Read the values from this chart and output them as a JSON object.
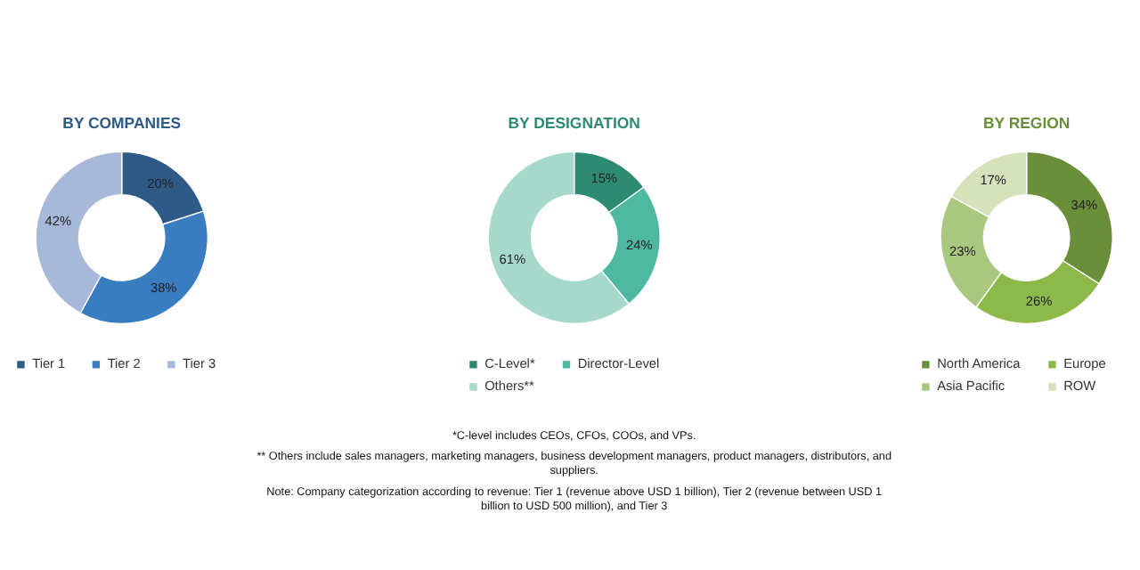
{
  "chart_data": [
    {
      "type": "donut",
      "title": "BY COMPANIES",
      "categories": [
        "Tier 1",
        "Tier 2",
        "Tier 3"
      ],
      "values": [
        20,
        38,
        42
      ],
      "colors": [
        "#2e5a88",
        "#3a7cc0",
        "#a8b8d8"
      ],
      "value_labels": [
        "20%",
        "38%",
        "42%"
      ],
      "legend": "bottom"
    },
    {
      "type": "donut",
      "title": "BY DESIGNATION",
      "categories": [
        "C-Level*",
        "Director-Level",
        "Others**"
      ],
      "values": [
        15,
        24,
        61
      ],
      "colors": [
        "#2e8b72",
        "#4fb8a0",
        "#a6d9cc"
      ],
      "value_labels": [
        "15%",
        "24%",
        "61%"
      ],
      "legend": "bottom",
      "annotations": [
        "*C-level includes CEOs, CFOs, COOs, and VPs.",
        "** Others include sales managers, marketing managers, business development managers, product managers, distributors, and suppliers.",
        "Note: Company categorization according to revenue: Tier 1 (revenue above USD 1 billion), Tier 2 (revenue between USD 1 billion to USD 500 million), and Tier 3"
      ]
    },
    {
      "type": "donut",
      "title": "BY REGION",
      "categories": [
        "North America",
        "Europe",
        "Asia Pacific",
        "ROW"
      ],
      "values": [
        34,
        26,
        23,
        17
      ],
      "colors": [
        "#6b8e3a",
        "#8db84a",
        "#a9c77e",
        "#d5e2bc"
      ],
      "value_labels": [
        "34%",
        "26%",
        "23%",
        "17%"
      ],
      "legend": "bottom"
    }
  ]
}
